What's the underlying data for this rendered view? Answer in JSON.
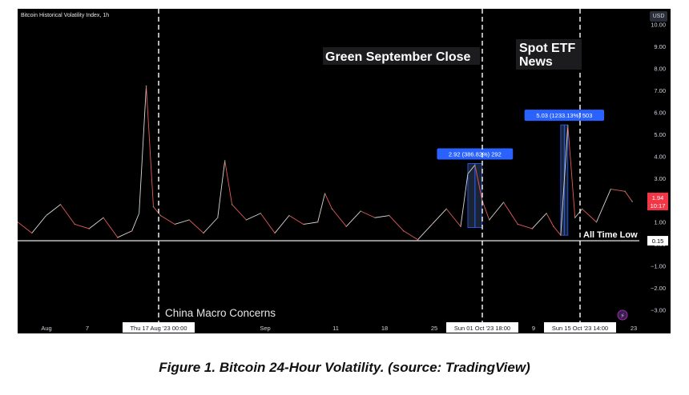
{
  "chart_data": {
    "type": "line",
    "title": "Bitcoin Historical Volatility Index, 1h",
    "currency": "USD",
    "yticks": [
      "10.00",
      "9.00",
      "8.00",
      "7.00",
      "6.00",
      "5.00",
      "4.00",
      "3.00",
      "2.00",
      "1.00",
      "0.00",
      "−1.00",
      "−2.00",
      "−3.00"
    ],
    "ylim": [
      -3.5,
      10.2
    ],
    "xticks": [
      "Aug",
      "7",
      "Sep",
      "11",
      "18",
      "25",
      "9",
      "23"
    ],
    "x_range": [
      "2023-07-31",
      "2023-10-26"
    ],
    "crosshair_date_labels": [
      "Thu 17 Aug '23   00:00",
      "Sun 01 Oct '23   18:00",
      "Sun 15 Oct '23   14:00"
    ],
    "annotations": [
      "Green September Close",
      "Spot ETF\nNews",
      "China Macro Concerns",
      "All Time Low"
    ],
    "measures": [
      {
        "label": "2.92 (386.82%) 292",
        "start": "2023-10-02",
        "end": "2023-10-04",
        "from": 0.75,
        "to": 3.67
      },
      {
        "label": "5.03 (1233.13%) 503",
        "start": "2023-10-15",
        "end": "2023-10-16",
        "from": 0.4,
        "to": 5.43
      }
    ],
    "last_value": "1.94",
    "last_value_time": "10:17",
    "baseline_value": "0.15",
    "caption": "Figure 1.  Bitcoin 24-Hour Volatility. (source: TradingView)",
    "series": [
      {
        "x": [
          "2023-07-31",
          "2023-08-02",
          "2023-08-04",
          "2023-08-06",
          "2023-08-08",
          "2023-08-10",
          "2023-08-12",
          "2023-08-14",
          "2023-08-16",
          "2023-08-17",
          "2023-08-18",
          "2023-08-19",
          "2023-08-20",
          "2023-08-22",
          "2023-08-24",
          "2023-08-26",
          "2023-08-28",
          "2023-08-29",
          "2023-08-30",
          "2023-09-01",
          "2023-09-03",
          "2023-09-05",
          "2023-09-07",
          "2023-09-09",
          "2023-09-11",
          "2023-09-12",
          "2023-09-13",
          "2023-09-15",
          "2023-09-17",
          "2023-09-19",
          "2023-09-21",
          "2023-09-23",
          "2023-09-25",
          "2023-09-27",
          "2023-09-29",
          "2023-10-01",
          "2023-10-02",
          "2023-10-03",
          "2023-10-04",
          "2023-10-05",
          "2023-10-07",
          "2023-10-09",
          "2023-10-11",
          "2023-10-13",
          "2023-10-14",
          "2023-10-15",
          "2023-10-16",
          "2023-10-17",
          "2023-10-18",
          "2023-10-20",
          "2023-10-22",
          "2023-10-24",
          "2023-10-25"
        ],
        "y": [
          1.0,
          0.5,
          1.3,
          1.8,
          0.9,
          0.7,
          1.2,
          0.3,
          0.6,
          1.4,
          7.2,
          1.7,
          1.3,
          0.9,
          1.1,
          0.5,
          1.2,
          3.8,
          1.8,
          1.1,
          1.4,
          0.5,
          1.3,
          0.9,
          1.0,
          2.3,
          1.6,
          0.8,
          1.5,
          1.2,
          1.3,
          0.6,
          0.2,
          0.9,
          1.6,
          0.8,
          3.2,
          3.6,
          2.0,
          1.1,
          1.9,
          0.9,
          0.7,
          1.4,
          0.8,
          0.4,
          5.4,
          1.2,
          1.6,
          1.0,
          2.5,
          2.4,
          1.94
        ]
      }
    ]
  }
}
